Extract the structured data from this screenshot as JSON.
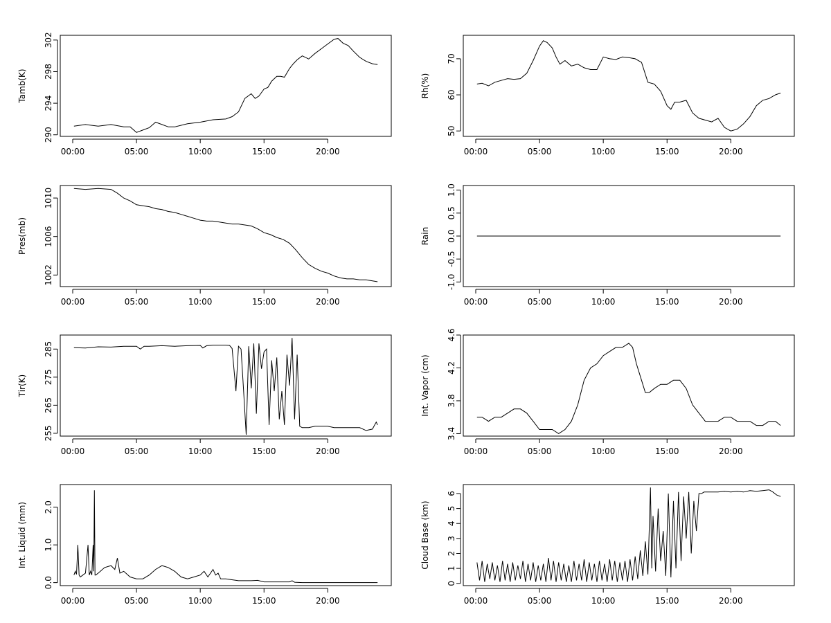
{
  "chart_data": [
    {
      "type": "line",
      "ylabel": "Tamb(K)",
      "xlim": [
        0,
        24
      ],
      "ylim": [
        289.8,
        302.6
      ],
      "xticks": [
        "00:00",
        "05:00",
        "10:00",
        "15:00",
        "20:00"
      ],
      "yticks": [
        290,
        294,
        298,
        302
      ],
      "x": [
        0.1,
        1,
        2,
        3,
        4,
        4.5,
        5,
        5.5,
        6,
        6.5,
        7,
        7.5,
        8,
        9,
        10,
        11,
        12,
        12.5,
        13,
        13.5,
        14,
        14.3,
        14.6,
        15,
        15.3,
        15.6,
        16,
        16.3,
        16.6,
        17,
        17.3,
        17.6,
        18,
        18.5,
        19,
        19.5,
        20,
        20.5,
        20.8,
        21.2,
        21.6,
        22,
        22.5,
        23,
        23.5,
        23.9
      ],
      "y": [
        291.1,
        291.3,
        291.1,
        291.3,
        291.0,
        291.0,
        290.3,
        290.6,
        290.9,
        291.6,
        291.3,
        291.0,
        291.0,
        291.4,
        291.6,
        291.9,
        292.0,
        292.3,
        292.9,
        294.6,
        295.2,
        294.6,
        294.9,
        295.8,
        296.0,
        296.8,
        297.4,
        297.4,
        297.3,
        298.4,
        299.0,
        299.5,
        300.0,
        299.6,
        300.3,
        300.9,
        301.5,
        302.1,
        302.2,
        301.6,
        301.3,
        300.6,
        299.8,
        299.3,
        299.0,
        298.9
      ]
    },
    {
      "type": "line",
      "ylabel": "Rh(%)",
      "xlim": [
        0,
        24
      ],
      "ylim": [
        48.5,
        76.5
      ],
      "xticks": [
        "00:00",
        "05:00",
        "10:00",
        "15:00",
        "20:00"
      ],
      "yticks": [
        50,
        60,
        70
      ],
      "x": [
        0.1,
        0.5,
        1,
        1.5,
        2,
        2.5,
        3,
        3.5,
        4,
        4.5,
        5,
        5.3,
        5.6,
        6,
        6.3,
        6.6,
        7,
        7.5,
        8,
        8.5,
        9,
        9.5,
        10,
        10.5,
        11,
        11.5,
        12,
        12.5,
        13,
        13.5,
        14,
        14.5,
        15,
        15.3,
        15.6,
        16,
        16.5,
        17,
        17.5,
        18,
        18.5,
        19,
        19.5,
        20,
        20.5,
        21,
        21.5,
        22,
        22.5,
        23,
        23.5,
        23.9
      ],
      "y": [
        63,
        63.2,
        62.5,
        63.5,
        64,
        64.5,
        64.3,
        64.5,
        66,
        69.5,
        73.5,
        75,
        74.5,
        73,
        70.5,
        68.5,
        69.5,
        68,
        68.5,
        67.5,
        67,
        67,
        70.5,
        70,
        69.8,
        70.5,
        70.3,
        70,
        69,
        63.5,
        63,
        61,
        57,
        56,
        58,
        58,
        58.5,
        55,
        53.5,
        53,
        52.5,
        53.5,
        51,
        50,
        50.5,
        52,
        54,
        57,
        58.5,
        59,
        60,
        60.5
      ]
    },
    {
      "type": "line",
      "ylabel": "Pres(mb)",
      "xlim": [
        0,
        24
      ],
      "ylim": [
        1000.8,
        1011.3
      ],
      "xticks": [
        "00:00",
        "05:00",
        "10:00",
        "15:00",
        "20:00"
      ],
      "yticks": [
        1002,
        1006,
        1010
      ],
      "x": [
        0.1,
        1,
        2,
        3,
        3.5,
        4,
        4.5,
        5,
        5.5,
        6,
        6.5,
        7,
        7.5,
        8,
        8.5,
        9,
        9.5,
        10,
        10.5,
        11,
        11.5,
        12,
        12.5,
        13,
        13.5,
        14,
        14.5,
        15,
        15.5,
        16,
        16.5,
        17,
        17.5,
        18,
        18.5,
        19,
        19.5,
        20,
        20.5,
        21,
        21.5,
        22,
        22.5,
        23,
        23.5,
        23.9
      ],
      "y": [
        1011,
        1010.9,
        1011,
        1010.9,
        1010.5,
        1010,
        1009.7,
        1009.3,
        1009.2,
        1009.1,
        1008.9,
        1008.8,
        1008.6,
        1008.5,
        1008.3,
        1008.1,
        1007.9,
        1007.7,
        1007.6,
        1007.6,
        1007.5,
        1007.4,
        1007.3,
        1007.3,
        1007.2,
        1007.1,
        1006.8,
        1006.4,
        1006.2,
        1005.9,
        1005.7,
        1005.3,
        1004.6,
        1003.8,
        1003.1,
        1002.7,
        1002.4,
        1002.2,
        1001.9,
        1001.7,
        1001.6,
        1001.6,
        1001.5,
        1001.5,
        1001.4,
        1001.3
      ]
    },
    {
      "type": "line",
      "ylabel": "Rain",
      "xlim": [
        0,
        24
      ],
      "ylim": [
        -1.1,
        1.1
      ],
      "xticks": [
        "00:00",
        "05:00",
        "10:00",
        "15:00",
        "20:00"
      ],
      "yticks": [
        -1.0,
        -0.5,
        0.0,
        0.5,
        1.0
      ],
      "x": [
        0.1,
        23.9
      ],
      "y": [
        0,
        0
      ]
    },
    {
      "type": "line",
      "ylabel": "Tir(K)",
      "xlim": [
        0,
        24
      ],
      "ylim": [
        254,
        290
      ],
      "xticks": [
        "00:00",
        "05:00",
        "10:00",
        "15:00",
        "20:00"
      ],
      "yticks": [
        255,
        265,
        275,
        285
      ],
      "x": [
        0.1,
        1,
        2,
        3,
        4,
        5,
        5.3,
        5.6,
        6,
        7,
        8,
        9,
        10,
        10.2,
        10.5,
        11,
        11.5,
        12,
        12.3,
        12.5,
        12.8,
        13,
        13.2,
        13.4,
        13.6,
        13.8,
        14,
        14.2,
        14.4,
        14.6,
        14.8,
        15,
        15.2,
        15.4,
        15.6,
        15.8,
        16,
        16.2,
        16.4,
        16.6,
        16.8,
        17,
        17.2,
        17.4,
        17.6,
        17.8,
        18,
        18.5,
        19,
        19.5,
        20,
        20.5,
        21,
        21.5,
        22,
        22.5,
        23,
        23.5,
        23.8,
        23.9
      ],
      "y": [
        285.5,
        285.4,
        285.8,
        285.7,
        286,
        286,
        285,
        286,
        286,
        286.2,
        286,
        286.2,
        286.3,
        285.4,
        286.2,
        286.4,
        286.4,
        286.4,
        286.3,
        285.2,
        270,
        286,
        285,
        270,
        254.5,
        286,
        271,
        287,
        262,
        287,
        278,
        284,
        285,
        258,
        281,
        270,
        282,
        260,
        270,
        258,
        283,
        272,
        289,
        260,
        283,
        257.5,
        257,
        257,
        257.5,
        257.5,
        257.5,
        257,
        257,
        257,
        257,
        257,
        256,
        256.5,
        259,
        258
      ]
    },
    {
      "type": "line",
      "ylabel": "Int. Vapor (cm)",
      "xlim": [
        0,
        24
      ],
      "ylim": [
        3.37,
        4.6
      ],
      "xticks": [
        "00:00",
        "05:00",
        "10:00",
        "15:00",
        "20:00"
      ],
      "yticks": [
        3.4,
        3.8,
        4.2,
        4.6
      ],
      "x": [
        0.1,
        0.5,
        1,
        1.5,
        2,
        2.5,
        3,
        3.5,
        4,
        4.5,
        5,
        5.5,
        6,
        6.5,
        7,
        7.5,
        8,
        8.5,
        9,
        9.5,
        10,
        10.5,
        11,
        11.5,
        12,
        12.3,
        12.6,
        13,
        13.3,
        13.6,
        14,
        14.5,
        15,
        15.5,
        16,
        16.5,
        17,
        17.5,
        18,
        18.5,
        19,
        19.5,
        20,
        20.5,
        21,
        21.5,
        22,
        22.5,
        23,
        23.5,
        23.9
      ],
      "y": [
        3.6,
        3.6,
        3.55,
        3.6,
        3.6,
        3.65,
        3.7,
        3.7,
        3.65,
        3.55,
        3.45,
        3.45,
        3.45,
        3.4,
        3.45,
        3.55,
        3.75,
        4.05,
        4.2,
        4.25,
        4.35,
        4.4,
        4.45,
        4.45,
        4.5,
        4.45,
        4.25,
        4.05,
        3.9,
        3.9,
        3.95,
        4.0,
        4.0,
        4.05,
        4.05,
        3.95,
        3.75,
        3.65,
        3.55,
        3.55,
        3.55,
        3.6,
        3.6,
        3.55,
        3.55,
        3.55,
        3.5,
        3.5,
        3.55,
        3.55,
        3.5
      ]
    },
    {
      "type": "line",
      "ylabel": "Int. Liquid (mm)",
      "xlim": [
        0,
        24
      ],
      "ylim": [
        -0.08,
        2.6
      ],
      "xticks": [
        "00:00",
        "05:00",
        "10:00",
        "15:00",
        "20:00"
      ],
      "yticks": [
        "0.0",
        "1.0",
        "2.0"
      ],
      "ytick_values": [
        0,
        1,
        2
      ],
      "x": [
        0.1,
        0.2,
        0.3,
        0.4,
        0.5,
        0.6,
        0.8,
        1,
        1.2,
        1.3,
        1.4,
        1.5,
        1.6,
        1.65,
        1.7,
        1.75,
        1.8,
        2,
        2.5,
        3,
        3.3,
        3.5,
        3.7,
        4,
        4.5,
        5,
        5.5,
        6,
        6.5,
        7,
        7.5,
        8,
        8.5,
        9,
        9.5,
        10,
        10.3,
        10.6,
        11,
        11.2,
        11.4,
        11.6,
        12,
        13,
        14,
        14.5,
        15,
        16,
        17,
        17.2,
        17.4,
        18,
        19,
        20,
        21,
        22,
        23,
        23.9
      ],
      "y": [
        0.2,
        0.3,
        0.22,
        1.0,
        0.2,
        0.15,
        0.2,
        0.25,
        1.0,
        0.2,
        0.3,
        0.2,
        1.0,
        0.3,
        2.45,
        0.2,
        0.2,
        0.25,
        0.4,
        0.45,
        0.35,
        0.65,
        0.25,
        0.3,
        0.15,
        0.1,
        0.1,
        0.2,
        0.35,
        0.45,
        0.4,
        0.3,
        0.15,
        0.1,
        0.15,
        0.2,
        0.3,
        0.15,
        0.35,
        0.2,
        0.25,
        0.1,
        0.1,
        0.05,
        0.05,
        0.06,
        0.02,
        0.02,
        0.02,
        0.05,
        0.01,
        0,
        0,
        0,
        0,
        0,
        0,
        0
      ]
    },
    {
      "type": "line",
      "ylabel": "Cloud Base (km)",
      "xlim": [
        0,
        24
      ],
      "ylim": [
        -0.15,
        6.6
      ],
      "xticks": [
        "00:00",
        "05:00",
        "10:00",
        "15:00",
        "20:00"
      ],
      "yticks": [
        0,
        1,
        2,
        3,
        4,
        5,
        6
      ],
      "x": [
        0.1,
        0.3,
        0.5,
        0.7,
        0.9,
        1.1,
        1.3,
        1.5,
        1.7,
        1.9,
        2.1,
        2.3,
        2.5,
        2.7,
        2.9,
        3.1,
        3.3,
        3.5,
        3.7,
        3.9,
        4.1,
        4.3,
        4.5,
        4.7,
        4.9,
        5.1,
        5.3,
        5.5,
        5.7,
        5.9,
        6.1,
        6.3,
        6.5,
        6.7,
        6.9,
        7.1,
        7.3,
        7.5,
        7.7,
        7.9,
        8.1,
        8.3,
        8.5,
        8.7,
        8.9,
        9.1,
        9.3,
        9.5,
        9.7,
        9.9,
        10.1,
        10.3,
        10.5,
        10.7,
        10.9,
        11.1,
        11.3,
        11.5,
        11.7,
        11.9,
        12.1,
        12.3,
        12.5,
        12.7,
        12.9,
        13.1,
        13.3,
        13.5,
        13.7,
        13.8,
        13.9,
        14.1,
        14.3,
        14.5,
        14.7,
        14.9,
        15.1,
        15.3,
        15.5,
        15.7,
        15.9,
        16.1,
        16.3,
        16.5,
        16.7,
        16.9,
        17.1,
        17.3,
        17.5,
        17.7,
        17.9,
        18.1,
        18.5,
        19,
        19.5,
        20,
        20.5,
        21,
        21.5,
        22,
        22.5,
        23,
        23.3,
        23.6,
        23.9
      ],
      "y": [
        1.4,
        0.2,
        1.5,
        0.1,
        1.3,
        0.3,
        1.4,
        0.2,
        1.2,
        0.1,
        1.5,
        0.2,
        1.3,
        0.1,
        1.4,
        0.2,
        1.2,
        0.3,
        1.5,
        0.1,
        1.3,
        0.2,
        1.4,
        0.1,
        1.2,
        0.2,
        1.3,
        0.1,
        1.7,
        0.2,
        1.5,
        0.1,
        1.4,
        0.2,
        1.3,
        0.1,
        1.2,
        0.1,
        1.5,
        0.2,
        1.3,
        0.2,
        1.6,
        0.1,
        1.4,
        0.2,
        1.3,
        0.1,
        1.5,
        0.2,
        1.3,
        0.1,
        1.6,
        0.2,
        1.5,
        0.1,
        1.4,
        0.2,
        1.5,
        0.1,
        1.6,
        0.2,
        1.8,
        0.3,
        2.2,
        0.5,
        2.8,
        0.6,
        6.4,
        1.0,
        4.5,
        0.8,
        5.0,
        1.5,
        3.5,
        0.5,
        6.0,
        0.4,
        5.5,
        1.0,
        6.1,
        1.5,
        5.8,
        3.0,
        6.1,
        2.0,
        5.5,
        3.5,
        6.0,
        6.0,
        6.1,
        6.1,
        6.1,
        6.1,
        6.15,
        6.1,
        6.15,
        6.1,
        6.2,
        6.15,
        6.2,
        6.25,
        6.1,
        5.9,
        5.8
      ]
    }
  ]
}
